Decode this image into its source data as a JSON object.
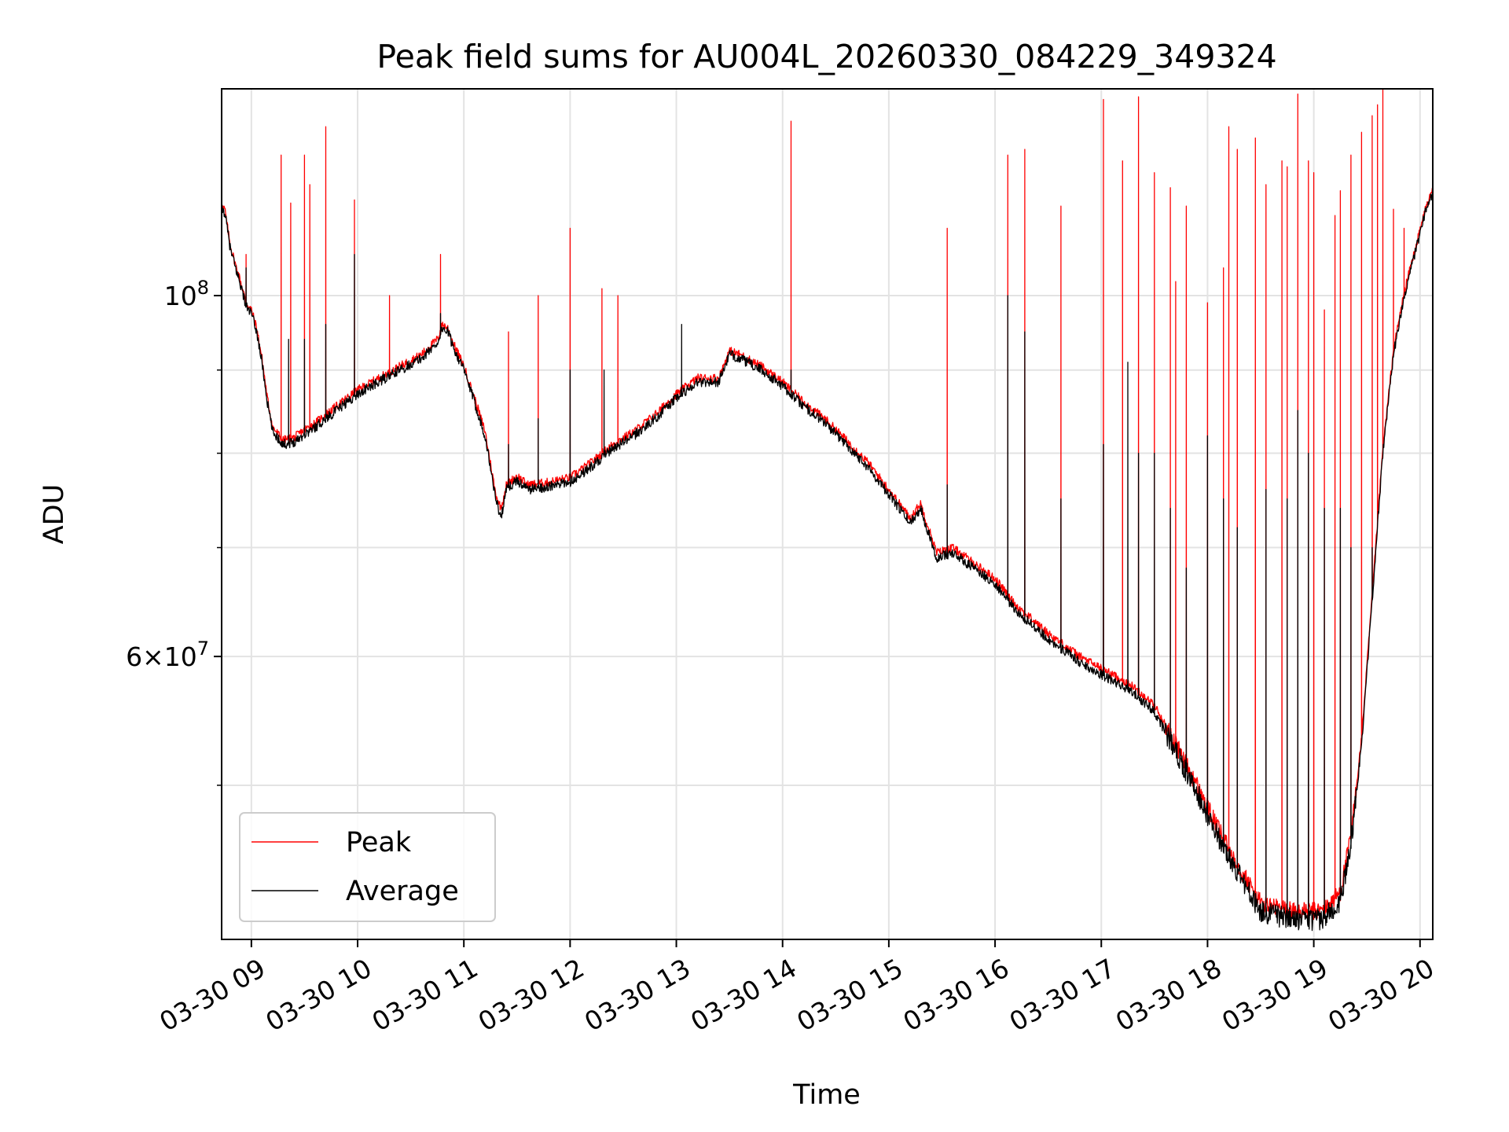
{
  "chart_data": {
    "type": "line",
    "title": "Peak field sums for AU004L_20260330_084229_349324",
    "xlabel": "Time",
    "ylabel": "ADU",
    "yscale": "log",
    "grid": true,
    "x_units": "hours since 2026-03-30 00:00",
    "xlim": [
      8.72,
      20.12
    ],
    "ylim": [
      40200000,
      134000000
    ],
    "x_ticks": [
      {
        "value": 9,
        "label": "03-30 09"
      },
      {
        "value": 10,
        "label": "03-30 10"
      },
      {
        "value": 11,
        "label": "03-30 11"
      },
      {
        "value": 12,
        "label": "03-30 12"
      },
      {
        "value": 13,
        "label": "03-30 13"
      },
      {
        "value": 14,
        "label": "03-30 14"
      },
      {
        "value": 15,
        "label": "03-30 15"
      },
      {
        "value": 16,
        "label": "03-30 16"
      },
      {
        "value": 17,
        "label": "03-30 17"
      },
      {
        "value": 18,
        "label": "03-30 18"
      },
      {
        "value": 19,
        "label": "03-30 19"
      },
      {
        "value": 20,
        "label": "03-30 20"
      }
    ],
    "y_major_ticks": [
      {
        "value": 100000000,
        "base": "10",
        "exp": "8",
        "coef": ""
      },
      {
        "value": 60000000,
        "base": "10",
        "exp": "7",
        "coef": "6×"
      }
    ],
    "y_minor_ticks": [
      50000000,
      70000000,
      80000000,
      90000000
    ],
    "legend": {
      "placement": "lower-left",
      "entries": [
        "Peak",
        "Average"
      ]
    },
    "series": [
      {
        "name": "Average",
        "color": "#000000",
        "baseline": [
          [
            8.72,
            113000000
          ],
          [
            8.75,
            112500000
          ],
          [
            8.8,
            107000000
          ],
          [
            8.85,
            104000000
          ],
          [
            8.9,
            101500000
          ],
          [
            8.95,
            98500000
          ],
          [
            9.0,
            97500000
          ],
          [
            9.05,
            95000000
          ],
          [
            9.1,
            91000000
          ],
          [
            9.15,
            86000000
          ],
          [
            9.2,
            82500000
          ],
          [
            9.3,
            81000000
          ],
          [
            9.4,
            81300000
          ],
          [
            9.5,
            82200000
          ],
          [
            9.6,
            83000000
          ],
          [
            9.7,
            84000000
          ],
          [
            9.8,
            85000000
          ],
          [
            9.9,
            86000000
          ],
          [
            10.0,
            87000000
          ],
          [
            10.2,
            88500000
          ],
          [
            10.4,
            90000000
          ],
          [
            10.6,
            91500000
          ],
          [
            10.75,
            93500000
          ],
          [
            10.8,
            95500000
          ],
          [
            10.85,
            95000000
          ],
          [
            10.9,
            93000000
          ],
          [
            11.0,
            90000000
          ],
          [
            11.1,
            86000000
          ],
          [
            11.2,
            82000000
          ],
          [
            11.3,
            75000000
          ],
          [
            11.35,
            73000000
          ],
          [
            11.4,
            76000000
          ],
          [
            11.5,
            77000000
          ],
          [
            11.6,
            76000000
          ],
          [
            11.8,
            76300000
          ],
          [
            12.0,
            76800000
          ],
          [
            12.2,
            78500000
          ],
          [
            12.4,
            80500000
          ],
          [
            12.6,
            82000000
          ],
          [
            12.8,
            84000000
          ],
          [
            13.0,
            86500000
          ],
          [
            13.2,
            88500000
          ],
          [
            13.4,
            88500000
          ],
          [
            13.5,
            92000000
          ],
          [
            13.6,
            91500000
          ],
          [
            13.8,
            90000000
          ],
          [
            14.0,
            88000000
          ],
          [
            14.2,
            85500000
          ],
          [
            14.4,
            83500000
          ],
          [
            14.6,
            81000000
          ],
          [
            14.8,
            78500000
          ],
          [
            15.0,
            75500000
          ],
          [
            15.2,
            72500000
          ],
          [
            15.3,
            74000000
          ],
          [
            15.45,
            69000000
          ],
          [
            15.6,
            69500000
          ],
          [
            15.8,
            68000000
          ],
          [
            16.0,
            66500000
          ],
          [
            16.2,
            64000000
          ],
          [
            16.5,
            61500000
          ],
          [
            16.8,
            59500000
          ],
          [
            17.0,
            58500000
          ],
          [
            17.3,
            57000000
          ],
          [
            17.5,
            55500000
          ],
          [
            17.7,
            52500000
          ],
          [
            17.9,
            49500000
          ],
          [
            18.1,
            46500000
          ],
          [
            18.3,
            44000000
          ],
          [
            18.5,
            41800000
          ],
          [
            18.7,
            41500000
          ],
          [
            18.9,
            41300000
          ],
          [
            19.1,
            41400000
          ],
          [
            19.25,
            42500000
          ],
          [
            19.35,
            46000000
          ],
          [
            19.45,
            53000000
          ],
          [
            19.55,
            65000000
          ],
          [
            19.65,
            80000000
          ],
          [
            19.75,
            92000000
          ],
          [
            19.85,
            100000000
          ],
          [
            19.95,
            106000000
          ],
          [
            20.05,
            112500000
          ],
          [
            20.12,
            115500000
          ]
        ],
        "spikes": [
          [
            8.95,
            104000000
          ],
          [
            9.35,
            94000000
          ],
          [
            9.5,
            94000000
          ],
          [
            9.7,
            96000000
          ],
          [
            9.97,
            106000000
          ],
          [
            10.78,
            97500000
          ],
          [
            11.42,
            81000000
          ],
          [
            11.7,
            84000000
          ],
          [
            12.0,
            90000000
          ],
          [
            12.32,
            90000000
          ],
          [
            13.05,
            96000000
          ],
          [
            14.08,
            90000000
          ],
          [
            15.55,
            76500000
          ],
          [
            16.12,
            100000000
          ],
          [
            16.28,
            95000000
          ],
          [
            16.62,
            75000000
          ],
          [
            17.02,
            81000000
          ],
          [
            17.25,
            91000000
          ],
          [
            17.35,
            80000000
          ],
          [
            17.5,
            80000000
          ],
          [
            17.65,
            74000000
          ],
          [
            17.8,
            68000000
          ],
          [
            18.0,
            82000000
          ],
          [
            18.15,
            75000000
          ],
          [
            18.28,
            72000000
          ],
          [
            18.55,
            76000000
          ],
          [
            18.75,
            75000000
          ],
          [
            18.85,
            85000000
          ],
          [
            18.95,
            80000000
          ],
          [
            19.1,
            74000000
          ],
          [
            19.25,
            74000000
          ],
          [
            19.35,
            70000000
          ],
          [
            19.55,
            70000000
          ]
        ]
      },
      {
        "name": "Peak",
        "color": "#ff0000",
        "baseline": [
          [
            8.72,
            113500000
          ],
          [
            8.75,
            113000000
          ],
          [
            8.8,
            107500000
          ],
          [
            8.85,
            104500000
          ],
          [
            8.9,
            102000000
          ],
          [
            8.95,
            99000000
          ],
          [
            9.0,
            98000000
          ],
          [
            9.05,
            95500000
          ],
          [
            9.1,
            91500000
          ],
          [
            9.15,
            86500000
          ],
          [
            9.2,
            83000000
          ],
          [
            9.3,
            81500000
          ],
          [
            9.4,
            81800000
          ],
          [
            9.5,
            82700000
          ],
          [
            9.6,
            83500000
          ],
          [
            9.7,
            84500000
          ],
          [
            9.8,
            85500000
          ],
          [
            9.9,
            86500000
          ],
          [
            10.0,
            87500000
          ],
          [
            10.2,
            89000000
          ],
          [
            10.4,
            90500000
          ],
          [
            10.6,
            92000000
          ],
          [
            10.75,
            94000000
          ],
          [
            10.8,
            96000000
          ],
          [
            10.85,
            95500000
          ],
          [
            10.9,
            93500000
          ],
          [
            11.0,
            90500000
          ],
          [
            11.1,
            86500000
          ],
          [
            11.2,
            82500000
          ],
          [
            11.3,
            75500000
          ],
          [
            11.35,
            74000000
          ],
          [
            11.4,
            76500000
          ],
          [
            11.5,
            77500000
          ],
          [
            11.6,
            76500000
          ],
          [
            11.8,
            76800000
          ],
          [
            12.0,
            77300000
          ],
          [
            12.2,
            79000000
          ],
          [
            12.4,
            81000000
          ],
          [
            12.6,
            82500000
          ],
          [
            12.8,
            84500000
          ],
          [
            13.0,
            87000000
          ],
          [
            13.2,
            89000000
          ],
          [
            13.4,
            89000000
          ],
          [
            13.5,
            92500000
          ],
          [
            13.6,
            92000000
          ],
          [
            13.8,
            90500000
          ],
          [
            14.0,
            88500000
          ],
          [
            14.2,
            86000000
          ],
          [
            14.4,
            84000000
          ],
          [
            14.6,
            81500000
          ],
          [
            14.8,
            79000000
          ],
          [
            15.0,
            76000000
          ],
          [
            15.2,
            73000000
          ],
          [
            15.3,
            74500000
          ],
          [
            15.45,
            69500000
          ],
          [
            15.6,
            70000000
          ],
          [
            15.8,
            68500000
          ],
          [
            16.0,
            67000000
          ],
          [
            16.2,
            64500000
          ],
          [
            16.5,
            62000000
          ],
          [
            16.8,
            60000000
          ],
          [
            17.0,
            59000000
          ],
          [
            17.3,
            57500000
          ],
          [
            17.5,
            56000000
          ],
          [
            17.7,
            53000000
          ],
          [
            17.9,
            50000000
          ],
          [
            18.1,
            47000000
          ],
          [
            18.3,
            44500000
          ],
          [
            18.5,
            42300000
          ],
          [
            18.7,
            42000000
          ],
          [
            18.9,
            41800000
          ],
          [
            19.1,
            41900000
          ],
          [
            19.25,
            43000000
          ],
          [
            19.35,
            46500000
          ],
          [
            19.45,
            53500000
          ],
          [
            19.55,
            65500000
          ],
          [
            19.65,
            80500000
          ],
          [
            19.75,
            92500000
          ],
          [
            19.85,
            100500000
          ],
          [
            19.95,
            106500000
          ],
          [
            20.05,
            113000000
          ],
          [
            20.12,
            116000000
          ]
        ],
        "spikes": [
          [
            8.95,
            106000000
          ],
          [
            9.28,
            122000000
          ],
          [
            9.37,
            114000000
          ],
          [
            9.5,
            122000000
          ],
          [
            9.55,
            117000000
          ],
          [
            9.7,
            127000000
          ],
          [
            9.97,
            114500000
          ],
          [
            10.3,
            100000000
          ],
          [
            10.78,
            106000000
          ],
          [
            11.42,
            95000000
          ],
          [
            11.7,
            100000000
          ],
          [
            12.0,
            110000000
          ],
          [
            12.3,
            101000000
          ],
          [
            12.45,
            100000000
          ],
          [
            14.08,
            128000000
          ],
          [
            15.55,
            110000000
          ],
          [
            16.12,
            122000000
          ],
          [
            16.28,
            123000000
          ],
          [
            16.62,
            113500000
          ],
          [
            17.02,
            132000000
          ],
          [
            17.2,
            121000000
          ],
          [
            17.35,
            132500000
          ],
          [
            17.5,
            119000000
          ],
          [
            17.65,
            116500000
          ],
          [
            17.7,
            102000000
          ],
          [
            17.8,
            113500000
          ],
          [
            18.0,
            99000000
          ],
          [
            18.15,
            104000000
          ],
          [
            18.2,
            127000000
          ],
          [
            18.28,
            123000000
          ],
          [
            18.45,
            125000000
          ],
          [
            18.55,
            117000000
          ],
          [
            18.7,
            121000000
          ],
          [
            18.75,
            120000000
          ],
          [
            18.85,
            133000000
          ],
          [
            18.95,
            121000000
          ],
          [
            19.0,
            119000000
          ],
          [
            19.1,
            98000000
          ],
          [
            19.2,
            112000000
          ],
          [
            19.25,
            116000000
          ],
          [
            19.35,
            122000000
          ],
          [
            19.45,
            126000000
          ],
          [
            19.55,
            129000000
          ],
          [
            19.6,
            131000000
          ],
          [
            19.65,
            134000000
          ],
          [
            19.75,
            113000000
          ],
          [
            19.85,
            110000000
          ]
        ]
      }
    ]
  }
}
